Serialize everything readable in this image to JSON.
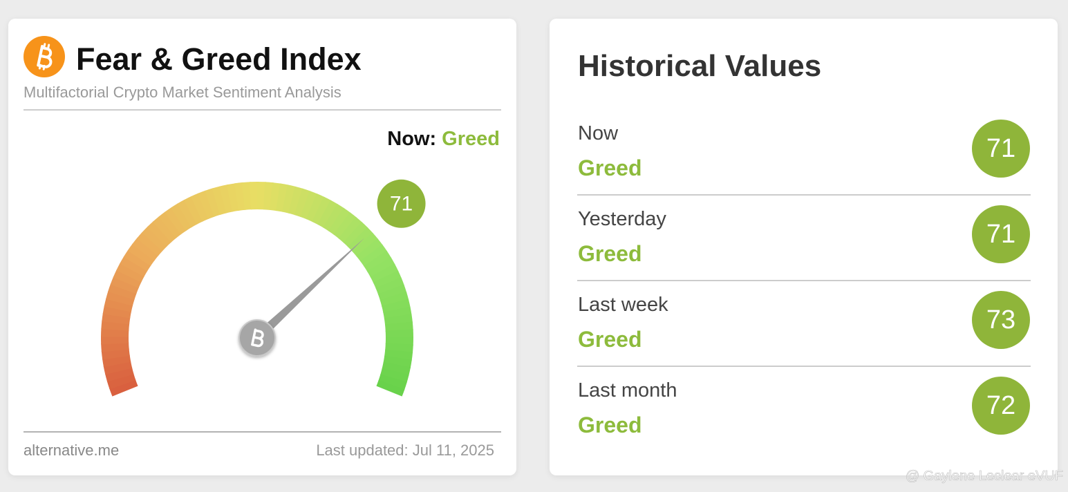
{
  "header": {
    "title": "Fear & Greed Index",
    "subtitle": "Multifactorial Crypto Market Sentiment Analysis"
  },
  "now": {
    "label": "Now:",
    "state": "Greed"
  },
  "gauge": {
    "value": 71,
    "range": [
      0,
      100
    ]
  },
  "footer": {
    "source": "alternative.me",
    "updated": "Last updated: Jul 11, 2025"
  },
  "history": {
    "title": "Historical Values",
    "rows": [
      {
        "period": "Now",
        "state": "Greed",
        "value": 71
      },
      {
        "period": "Yesterday",
        "state": "Greed",
        "value": 71
      },
      {
        "period": "Last week",
        "state": "Greed",
        "value": 73
      },
      {
        "period": "Last month",
        "state": "Greed",
        "value": 72
      }
    ]
  },
  "watermark": "@ Gaylene Leclear eVUF"
}
